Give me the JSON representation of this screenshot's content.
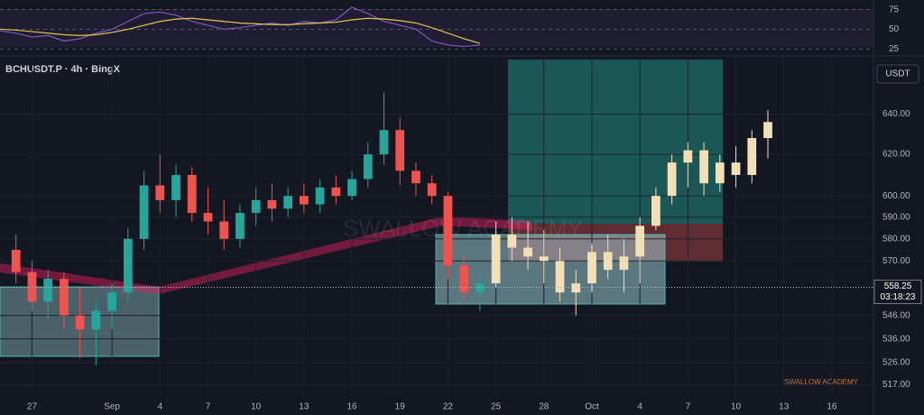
{
  "chart_data": [
    {
      "type": "line",
      "ylim": [
        16,
        85
      ],
      "yticks": [
        75,
        50,
        25
      ],
      "xlim": [
        -2,
        52.6
      ],
      "series": [
        {
          "color": "#7e57c2",
          "x": [
            -2,
            -1,
            0,
            1,
            2,
            3,
            4,
            5,
            6,
            7,
            8,
            9,
            10,
            11,
            12,
            13,
            14,
            15,
            16,
            17,
            18,
            19,
            20,
            21,
            22,
            23,
            24,
            25,
            26,
            27,
            28
          ],
          "values": [
            48,
            45,
            40,
            42,
            35,
            38,
            45,
            50,
            60,
            70,
            72,
            68,
            60,
            55,
            50,
            52,
            55,
            58,
            55,
            60,
            58,
            62,
            78,
            70,
            60,
            55,
            50,
            35,
            30,
            28,
            30
          ]
        },
        {
          "color": "#e6c34a",
          "x": [
            -2,
            -1,
            0,
            1,
            2,
            3,
            4,
            5,
            6,
            7,
            8,
            9,
            10,
            11,
            12,
            13,
            14,
            15,
            16,
            17,
            18,
            19,
            20,
            21,
            22,
            23,
            24,
            25,
            26,
            27,
            28
          ],
          "values": [
            50,
            49,
            47,
            45,
            43,
            42,
            43,
            46,
            50,
            55,
            60,
            63,
            64,
            62,
            60,
            58,
            57,
            56,
            56,
            57,
            58,
            59,
            62,
            64,
            63,
            61,
            58,
            52,
            45,
            38,
            32
          ]
        }
      ]
    },
    {
      "type": "candlestick",
      "title": "BCHUSDT.P · 4h · BingX",
      "currency": "USDT",
      "last_price": {
        "value": 558.25,
        "label": "558.25"
      },
      "countdown": "03:18:23",
      "watermark": "SWALLOW ACADEMY",
      "log_scale": true,
      "ylim": [
        512,
        671
      ],
      "yticks": [
        {
          "value": 640,
          "label": "640.00"
        },
        {
          "value": 620,
          "label": "620.00"
        },
        {
          "value": 600,
          "label": "600.00"
        },
        {
          "value": 590,
          "label": "590.00"
        },
        {
          "value": 580,
          "label": "580.00"
        },
        {
          "value": 570,
          "label": "570.00"
        },
        {
          "value": 546,
          "label": "546.00"
        },
        {
          "value": 536,
          "label": "536.00"
        },
        {
          "value": 526,
          "label": "526.00"
        },
        {
          "value": 517,
          "label": "517.00"
        }
      ],
      "xlim": [
        -2,
        52.6
      ],
      "xticks": [
        {
          "value": 0,
          "label": "27"
        },
        {
          "value": 5,
          "label": "Sep"
        },
        {
          "value": 8,
          "label": "4"
        },
        {
          "value": 11,
          "label": "7"
        },
        {
          "value": 14,
          "label": "10"
        },
        {
          "value": 17,
          "label": "13"
        },
        {
          "value": 20,
          "label": "16"
        },
        {
          "value": 23,
          "label": "19"
        },
        {
          "value": 26,
          "label": "22"
        },
        {
          "value": 29,
          "label": "25"
        },
        {
          "value": 32,
          "label": "28"
        },
        {
          "value": 35,
          "label": "Oct"
        },
        {
          "value": 38,
          "label": "4"
        },
        {
          "value": 41,
          "label": "7"
        },
        {
          "value": 44,
          "label": "10"
        },
        {
          "value": 47,
          "label": "13"
        },
        {
          "value": 50,
          "label": "16"
        }
      ],
      "up_color": "#26a69a",
      "down_color": "#ef5350",
      "projection_color": "#f3dfb5",
      "candles": {
        "x": [
          -1,
          0,
          1,
          2,
          3,
          4,
          5,
          6,
          7,
          8,
          9,
          10,
          11,
          12,
          13,
          14,
          15,
          16,
          17,
          18,
          19,
          20,
          21,
          22,
          23,
          24,
          25,
          26,
          27,
          28
        ],
        "open": [
          575,
          565,
          552,
          562,
          546,
          540,
          548,
          556,
          580,
          605,
          598,
          610,
          592,
          588,
          580,
          592,
          598,
          594,
          600,
          596,
          604,
          600,
          608,
          620,
          632,
          612,
          606,
          600,
          568,
          556
        ],
        "high": [
          582,
          570,
          566,
          565,
          558,
          552,
          560,
          585,
          612,
          620,
          615,
          614,
          604,
          598,
          596,
          604,
          606,
          604,
          606,
          608,
          610,
          612,
          626,
          651,
          638,
          616,
          610,
          602,
          572,
          566
        ],
        "low": [
          560,
          548,
          545,
          540,
          528,
          525,
          540,
          552,
          575,
          592,
          590,
          588,
          582,
          575,
          576,
          586,
          588,
          590,
          592,
          592,
          596,
          598,
          604,
          615,
          605,
          600,
          596,
          562,
          552,
          548
        ],
        "close": [
          565,
          552,
          562,
          546,
          540,
          548,
          556,
          580,
          605,
          598,
          610,
          592,
          588,
          580,
          592,
          598,
          594,
          600,
          596,
          604,
          600,
          608,
          620,
          632,
          612,
          606,
          600,
          568,
          556,
          560
        ]
      },
      "projection": {
        "x": [
          29,
          30,
          31,
          32,
          33,
          34,
          35,
          36,
          37,
          38,
          39,
          40,
          41,
          42,
          43,
          44,
          45,
          46
        ],
        "open": [
          560,
          582,
          576,
          572,
          570,
          556,
          560,
          574,
          566,
          572,
          586,
          600,
          616,
          622,
          606,
          616,
          610,
          628
        ],
        "high": [
          588,
          590,
          588,
          584,
          576,
          566,
          578,
          582,
          580,
          590,
          604,
          620,
          626,
          626,
          620,
          624,
          632,
          642
        ],
        "low": [
          558,
          570,
          566,
          560,
          552,
          546,
          556,
          562,
          556,
          560,
          584,
          596,
          604,
          600,
          602,
          604,
          606,
          618
        ],
        "close": [
          582,
          576,
          572,
          570,
          556,
          560,
          574,
          566,
          572,
          586,
          600,
          616,
          622,
          606,
          616,
          610,
          628,
          636
        ]
      }
    }
  ]
}
